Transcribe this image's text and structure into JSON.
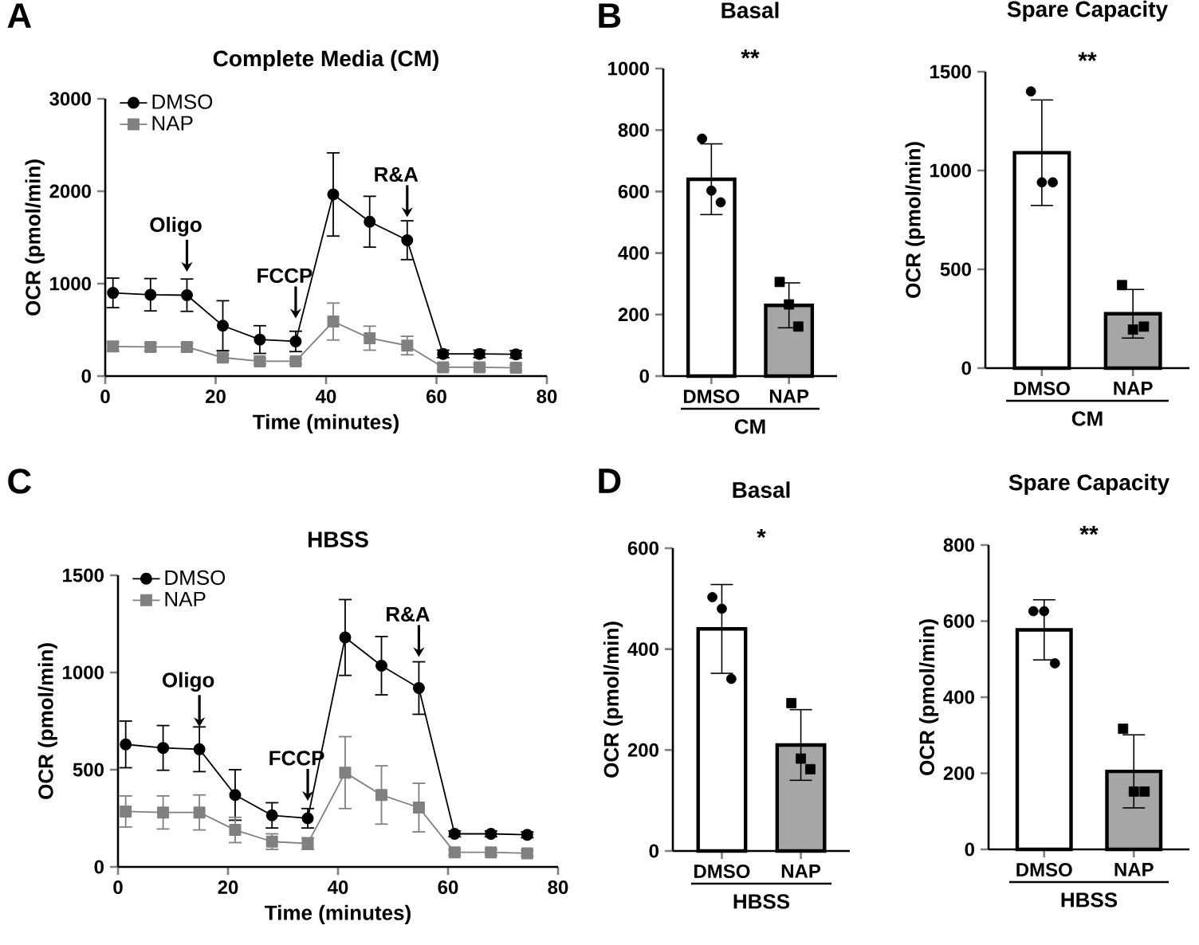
{
  "chart_data": [
    {
      "type": "line",
      "title": "Complete Media (CM)",
      "xlabel": "Time (minutes)",
      "ylabel": "OCR (pmol/min)",
      "x": [
        1.4,
        8.2,
        14.8,
        21.3,
        28,
        34.5,
        41.3,
        47.9,
        54.7,
        61.2,
        67.8,
        74.4
      ],
      "series": [
        {
          "name": "DMSO",
          "color": "#000000",
          "marker": "circle",
          "values": [
            900,
            880,
            875,
            545,
            395,
            375,
            1965,
            1670,
            1470,
            240,
            240,
            235
          ],
          "errors": [
            160,
            175,
            175,
            270,
            150,
            110,
            450,
            275,
            210,
            40,
            40,
            40
          ]
        },
        {
          "name": "NAP",
          "color": "#808080",
          "marker": "square",
          "values": [
            320,
            315,
            315,
            200,
            160,
            160,
            590,
            410,
            330,
            95,
            95,
            90
          ],
          "errors": [
            50,
            40,
            40,
            30,
            30,
            30,
            200,
            130,
            100,
            30,
            30,
            30
          ]
        }
      ],
      "xlim": [
        0,
        80
      ],
      "xticks": [
        0,
        20,
        40,
        60,
        80
      ],
      "ylim": [
        0,
        3000
      ],
      "yticks": [
        0,
        1000,
        2000,
        3000
      ],
      "legend": "top left",
      "annotations": [
        "A",
        {
          "text": "Oligo",
          "x": 14.8,
          "y": 1130
        },
        {
          "text": "FCCP",
          "x": 34.5,
          "y": 625
        },
        {
          "text": "R&A",
          "x": 54.7,
          "y": 1720
        }
      ]
    },
    {
      "type": "bar",
      "title": "Basal",
      "xlabel": "CM",
      "categories": [
        "DMSO",
        "NAP"
      ],
      "series": [
        {
          "type": "bar",
          "colors": [
            "#ffffff",
            "#a6a6a6"
          ],
          "values": [
            640,
            230
          ],
          "errors": [
            115,
            73
          ]
        },
        {
          "type": "scatter",
          "color": "#000000",
          "marker": "circle",
          "x": [
            "DMSO",
            "DMSO",
            "DMSO"
          ],
          "values": [
            772,
            603,
            565
          ]
        },
        {
          "type": "scatter",
          "color": "#000000",
          "marker": "square",
          "x": [
            "NAP",
            "NAP",
            "NAP"
          ],
          "values": [
            306,
            233,
            161
          ]
        }
      ],
      "ylim": [
        0,
        1000
      ],
      "yticks": [
        0,
        200,
        400,
        600,
        800,
        1000
      ],
      "annotations": [
        "B",
        "**"
      ]
    },
    {
      "type": "bar",
      "title": "Spare Capacity",
      "xlabel": "CM",
      "ylabel": "OCR (pmol/min)",
      "categories": [
        "DMSO",
        "NAP"
      ],
      "series": [
        {
          "type": "bar",
          "colors": [
            "#ffffff",
            "#a6a6a6"
          ],
          "values": [
            1090,
            275
          ],
          "errors": [
            267,
            123
          ]
        },
        {
          "type": "scatter",
          "color": "#000000",
          "marker": "circle",
          "x": [
            "DMSO",
            "DMSO",
            "DMSO"
          ],
          "values": [
            1400,
            940,
            940
          ]
        },
        {
          "type": "scatter",
          "color": "#000000",
          "marker": "square",
          "x": [
            "NAP",
            "NAP",
            "NAP"
          ],
          "values": [
            420,
            195,
            210
          ]
        }
      ],
      "ylim": [
        0,
        1500
      ],
      "yticks": [
        0,
        500,
        1000,
        1500
      ],
      "annotations": [
        "**"
      ]
    },
    {
      "type": "line",
      "title": "HBSS",
      "xlabel": "Time (minutes)",
      "ylabel": "OCR (pmol/min)",
      "x": [
        1.4,
        8.2,
        14.8,
        21.3,
        28,
        34.5,
        41.3,
        47.9,
        54.7,
        61.2,
        67.8,
        74.4
      ],
      "series": [
        {
          "name": "DMSO",
          "color": "#000000",
          "marker": "circle",
          "values": [
            630,
            612,
            605,
            370,
            265,
            250,
            1180,
            1035,
            920,
            170,
            170,
            165
          ],
          "errors": [
            120,
            115,
            115,
            130,
            65,
            50,
            195,
            150,
            135,
            15,
            15,
            15
          ]
        },
        {
          "name": "NAP",
          "color": "#808080",
          "marker": "square",
          "values": [
            285,
            280,
            280,
            190,
            130,
            120,
            485,
            370,
            305,
            75,
            75,
            70
          ],
          "errors": [
            80,
            85,
            90,
            65,
            40,
            30,
            185,
            150,
            125,
            15,
            15,
            15
          ]
        }
      ],
      "xlim": [
        0,
        80
      ],
      "xticks": [
        0,
        20,
        40,
        60,
        80
      ],
      "ylim": [
        0,
        1500
      ],
      "yticks": [
        0,
        500,
        1000,
        1500
      ],
      "legend": "top left",
      "annotations": [
        "C",
        {
          "text": "Oligo",
          "x": 14.8,
          "y": 720
        },
        {
          "text": "FCCP",
          "x": 34.5,
          "y": 340
        },
        {
          "text": "R&A",
          "x": 54.7,
          "y": 1080
        }
      ]
    },
    {
      "type": "bar",
      "title": "Basal",
      "xlabel": "HBSS",
      "ylabel": "OCR (pmol/min)",
      "categories": [
        "DMSO",
        "NAP"
      ],
      "series": [
        {
          "type": "bar",
          "colors": [
            "#ffffff",
            "#a6a6a6"
          ],
          "values": [
            440,
            210
          ],
          "errors": [
            88,
            70
          ]
        },
        {
          "type": "scatter",
          "color": "#000000",
          "marker": "circle",
          "x": [
            "DMSO",
            "DMSO",
            "DMSO"
          ],
          "values": [
            503,
            480,
            341
          ]
        },
        {
          "type": "scatter",
          "color": "#000000",
          "marker": "square",
          "x": [
            "NAP",
            "NAP",
            "NAP"
          ],
          "values": [
            293,
            183,
            162
          ]
        }
      ],
      "ylim": [
        0,
        600
      ],
      "yticks": [
        0,
        200,
        400,
        600
      ],
      "annotations": [
        "D",
        "*"
      ]
    },
    {
      "type": "bar",
      "title": "Spare Capacity",
      "xlabel": "HBSS",
      "ylabel": "OCR (pmol/min)",
      "categories": [
        "DMSO",
        "NAP"
      ],
      "series": [
        {
          "type": "bar",
          "colors": [
            "#ffffff",
            "#a6a6a6"
          ],
          "values": [
            577,
            205
          ],
          "errors": [
            79,
            96
          ]
        },
        {
          "type": "scatter",
          "color": "#000000",
          "marker": "circle",
          "x": [
            "DMSO",
            "DMSO",
            "DMSO"
          ],
          "values": [
            626,
            626,
            489
          ]
        },
        {
          "type": "scatter",
          "color": "#000000",
          "marker": "square",
          "x": [
            "NAP",
            "NAP",
            "NAP"
          ],
          "values": [
            317,
            152,
            152
          ]
        }
      ],
      "ylim": [
        0,
        800
      ],
      "yticks": [
        0,
        200,
        400,
        600,
        800
      ],
      "annotations": [
        "**"
      ]
    }
  ]
}
